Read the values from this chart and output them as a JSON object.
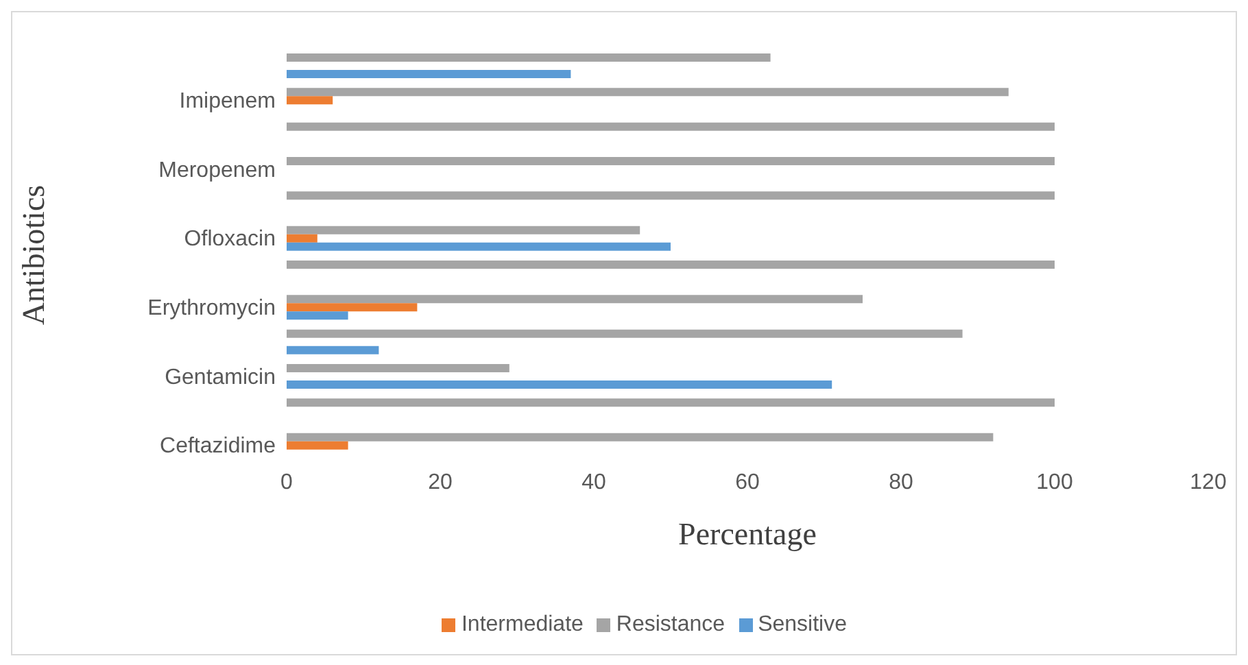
{
  "chart_data": {
    "type": "bar",
    "orientation": "horizontal",
    "xlabel": "Percentage",
    "ylabel": "Antibiotics",
    "categories": [
      null,
      "Imipenem",
      null,
      "Meropenem",
      null,
      "Ofloxacin",
      null,
      "Erythromycin",
      null,
      "Gentamicin",
      null,
      "Ceftazidime"
    ],
    "series": [
      {
        "name": "Resistance",
        "color": "#a5a5a5",
        "values": [
          63,
          94,
          100,
          100,
          100,
          46,
          100,
          75,
          88,
          29,
          100,
          92
        ]
      },
      {
        "name": "Intermediate",
        "color": "#ed7d31",
        "values": [
          0,
          6,
          0,
          0,
          0,
          4,
          0,
          17,
          0,
          0,
          0,
          8
        ]
      },
      {
        "name": "Sensitive",
        "color": "#5b9bd5",
        "values": [
          37,
          0,
          0,
          0,
          0,
          50,
          0,
          8,
          12,
          71,
          0,
          0
        ]
      }
    ],
    "xlim": [
      0,
      120
    ],
    "xticks": [
      0,
      20,
      40,
      60,
      80,
      100,
      120
    ],
    "grid": false,
    "legend": "bottom"
  }
}
